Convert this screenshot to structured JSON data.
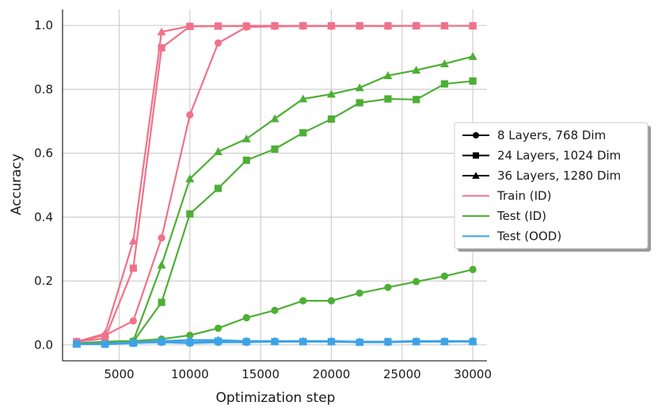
{
  "chart_data": {
    "type": "line",
    "title": "",
    "xlabel": "Optimization step",
    "ylabel": "Accuracy",
    "xlim": [
      1000,
      31000
    ],
    "ylim": [
      -0.05,
      1.05
    ],
    "xticks": [
      5000,
      10000,
      15000,
      20000,
      25000,
      30000
    ],
    "yticks": [
      0.0,
      0.2,
      0.4,
      0.6,
      0.8,
      1.0
    ],
    "grid": true,
    "legend_position": "right",
    "legend": [
      {
        "label": "8 Layers, 768 Dim",
        "marker": "circle",
        "color": "#000000"
      },
      {
        "label": "24 Layers, 1024 Dim",
        "marker": "square",
        "color": "#000000"
      },
      {
        "label": "36 Layers, 1280 Dim",
        "marker": "triangle",
        "color": "#000000"
      },
      {
        "label": "Train (ID)",
        "marker": "line",
        "color": "#f0728a"
      },
      {
        "label": "Test (ID)",
        "marker": "line",
        "color": "#4daf35"
      },
      {
        "label": "Test (OOD)",
        "marker": "line",
        "color": "#3ea2e6"
      }
    ],
    "x": [
      2000,
      4000,
      6000,
      8000,
      10000,
      12000,
      14000,
      16000,
      18000,
      20000,
      22000,
      24000,
      26000,
      28000,
      30000
    ],
    "series": [
      {
        "split": "Train (ID)",
        "model": "8 Layers, 768 Dim",
        "color": "#f0728a",
        "marker": "circle",
        "values": [
          0.01,
          0.03,
          0.075,
          0.335,
          0.72,
          0.945,
          0.995,
          0.997,
          0.998,
          0.998,
          0.998,
          0.998,
          0.999,
          0.999,
          0.999
        ]
      },
      {
        "split": "Train (ID)",
        "model": "24 Layers, 1024 Dim",
        "color": "#f0728a",
        "marker": "square",
        "values": [
          0.01,
          0.02,
          0.24,
          0.93,
          0.997,
          0.998,
          0.998,
          0.999,
          0.999,
          0.999,
          0.999,
          0.999,
          0.999,
          0.999,
          0.999
        ]
      },
      {
        "split": "Train (ID)",
        "model": "36 Layers, 1280 Dim",
        "color": "#f0728a",
        "marker": "triangle",
        "values": [
          0.01,
          0.035,
          0.325,
          0.98,
          0.998,
          0.998,
          0.999,
          0.999,
          0.999,
          0.999,
          0.999,
          0.999,
          0.999,
          0.999,
          0.999
        ]
      },
      {
        "split": "Test (ID)",
        "model": "8 Layers, 768 Dim",
        "color": "#4daf35",
        "marker": "circle",
        "values": [
          0.005,
          0.01,
          0.012,
          0.018,
          0.03,
          0.052,
          0.085,
          0.108,
          0.138,
          0.138,
          0.162,
          0.18,
          0.198,
          0.215,
          0.236
        ]
      },
      {
        "split": "Test (ID)",
        "model": "24 Layers, 1024 Dim",
        "color": "#4daf35",
        "marker": "square",
        "values": [
          0.005,
          0.008,
          0.01,
          0.133,
          0.41,
          0.49,
          0.578,
          0.613,
          0.664,
          0.707,
          0.758,
          0.77,
          0.768,
          0.817,
          0.826
        ]
      },
      {
        "split": "Test (ID)",
        "model": "36 Layers, 1280 Dim",
        "color": "#4daf35",
        "marker": "triangle",
        "values": [
          0.005,
          0.01,
          0.012,
          0.25,
          0.52,
          0.605,
          0.645,
          0.708,
          0.77,
          0.785,
          0.805,
          0.843,
          0.86,
          0.88,
          0.903
        ]
      },
      {
        "split": "Test (OOD)",
        "model": "8 Layers, 768 Dim",
        "color": "#3ea2e6",
        "marker": "circle",
        "values": [
          0.002,
          0.002,
          0.006,
          0.008,
          0.005,
          0.008,
          0.008,
          0.01,
          0.01,
          0.01,
          0.008,
          0.008,
          0.01,
          0.01,
          0.012
        ]
      },
      {
        "split": "Test (OOD)",
        "model": "24 Layers, 1024 Dim",
        "color": "#3ea2e6",
        "marker": "square",
        "values": [
          0.003,
          0.002,
          0.005,
          0.01,
          0.008,
          0.012,
          0.01,
          0.01,
          0.01,
          0.01,
          0.008,
          0.01,
          0.01,
          0.01,
          0.01
        ]
      },
      {
        "split": "Test (OOD)",
        "model": "36 Layers, 1280 Dim",
        "color": "#3ea2e6",
        "marker": "triangle",
        "values": [
          0.002,
          0.004,
          0.008,
          0.012,
          0.015,
          0.015,
          0.012,
          0.012,
          0.012,
          0.012,
          0.01,
          0.01,
          0.012,
          0.012,
          0.012
        ]
      }
    ]
  }
}
